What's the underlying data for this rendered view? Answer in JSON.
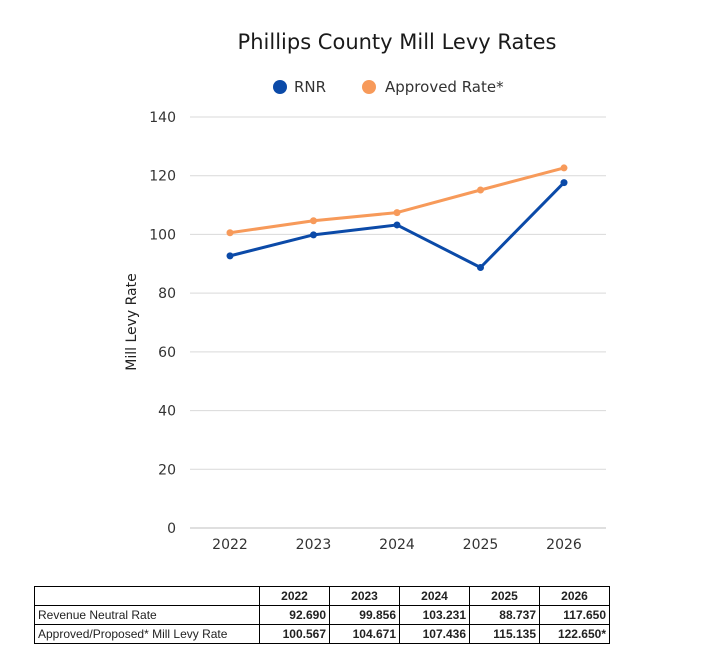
{
  "chart_data": {
    "type": "line",
    "title": "Phillips County Mill Levy Rates",
    "ylabel": "Mill Levy Rate",
    "xlabel": "",
    "categories": [
      "2022",
      "2023",
      "2024",
      "2025",
      "2026"
    ],
    "ylim": [
      0,
      140
    ],
    "yticks": [
      0,
      20,
      40,
      60,
      80,
      100,
      120,
      140
    ],
    "grid": true,
    "legend_position": "top",
    "series": [
      {
        "name": "RNR",
        "color": "#0b4aa8",
        "values": [
          92.69,
          99.856,
          103.231,
          88.737,
          117.65
        ]
      },
      {
        "name": "Approved Rate*",
        "color": "#f79a5a",
        "values": [
          100.567,
          104.671,
          107.436,
          115.135,
          122.65
        ]
      }
    ]
  },
  "table": {
    "headers": [
      "2022",
      "2023",
      "2024",
      "2025",
      "2026"
    ],
    "rows": [
      {
        "label": "Revenue Neutral Rate",
        "values": [
          "92.690",
          "99.856",
          "103.231",
          "88.737",
          "117.650"
        ]
      },
      {
        "label": "Approved/Proposed* Mill Levy Rate",
        "values": [
          "100.567",
          "104.671",
          "107.436",
          "115.135",
          "122.650*"
        ]
      }
    ]
  }
}
